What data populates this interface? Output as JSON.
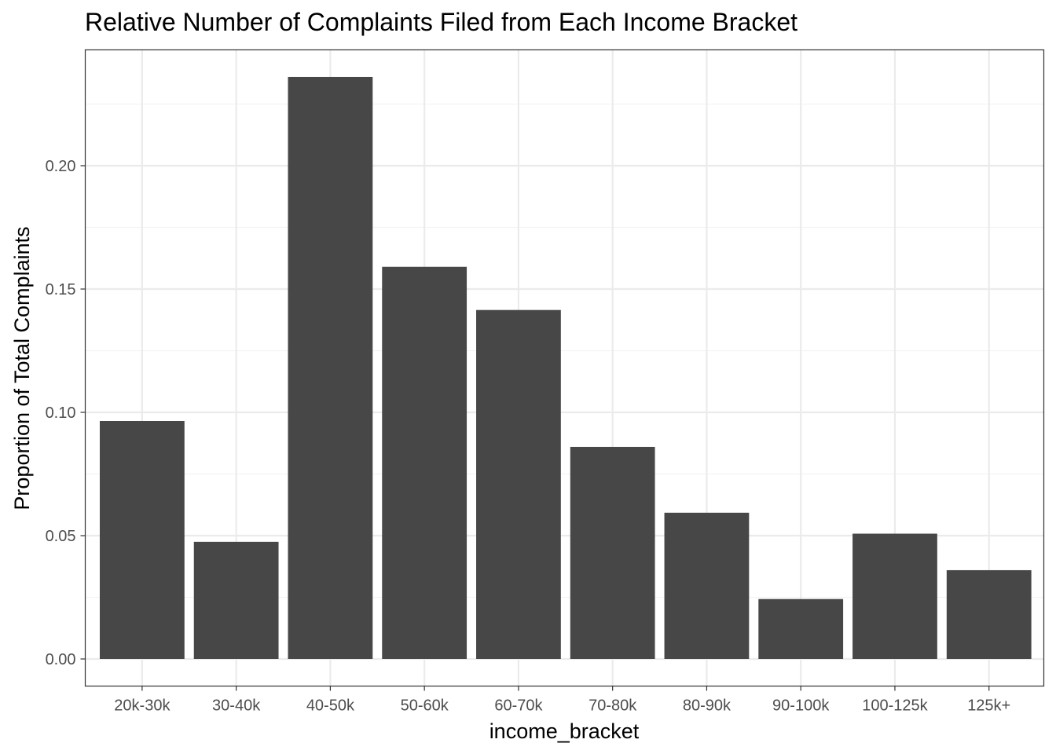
{
  "chart_data": {
    "type": "bar",
    "title": "Relative Number of Complaints Filed from Each Income Bracket",
    "xlabel": "income_bracket",
    "ylabel": "Proportion of Total Complaints",
    "categories": [
      "20k-30k",
      "30-40k",
      "40-50k",
      "50-60k",
      "60-70k",
      "70-80k",
      "80-90k",
      "90-100k",
      "100-125k",
      "125k+"
    ],
    "values": [
      0.0965,
      0.0475,
      0.236,
      0.159,
      0.1415,
      0.086,
      0.0593,
      0.0243,
      0.0508,
      0.036
    ],
    "ylim": [
      0,
      0.25
    ],
    "yticks": [
      0.0,
      0.05,
      0.1,
      0.15,
      0.2
    ],
    "ytick_labels": [
      "0.00",
      "0.05",
      "0.10",
      "0.15",
      "0.20"
    ],
    "grid": true,
    "theme": "bw",
    "colors": {
      "bar": "#474747",
      "grid_major": "#ebebeb",
      "grid_minor": "#f3f3f3",
      "panel_border": "#333333",
      "tick_text": "#4d4d4d"
    }
  }
}
